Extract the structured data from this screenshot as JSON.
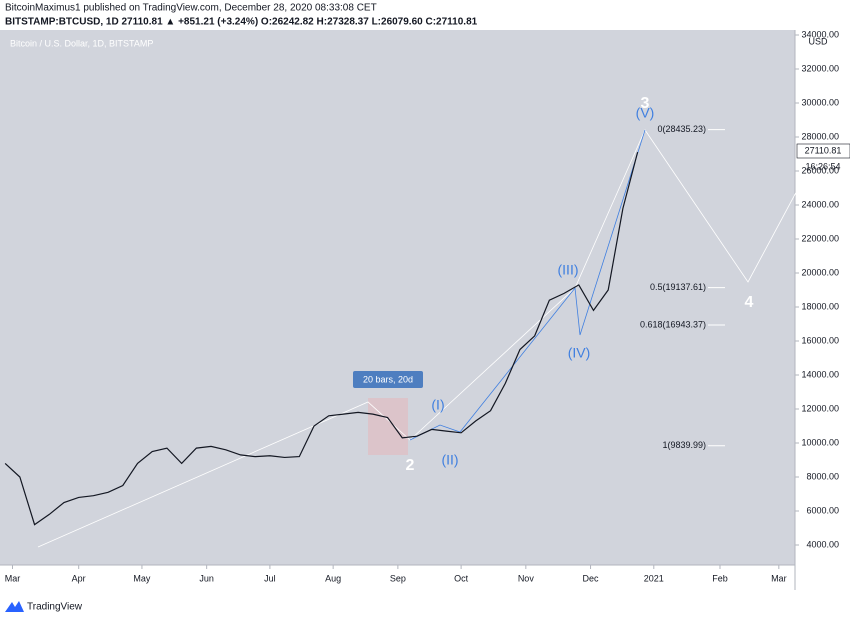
{
  "chart_data": {
    "type": "line",
    "header": "BitcoinMaximus1 published on TradingView.com, December 28, 2020 08:33:08 CET",
    "symbol_line": "BITSTAMP:BTCUSD, 1D  27110.81  ▲ +851.21 (+3.24%)  O:26242.82  H:27328.37  L:26079.60  C:27110.81",
    "title": "Bitcoin / U.S. Dollar, 1D, BITSTAMP",
    "axis_unit": "USD",
    "last_price": "27110.81",
    "countdown": "16:26:54",
    "range_box": "20 bars, 20d",
    "waves": [
      "3",
      "(V)",
      "(III)",
      "(IV)",
      "(I)",
      "(II)",
      "2",
      "4"
    ],
    "fib_levels": [
      {
        "value": 28435.23,
        "label": "0(28435.23)"
      },
      {
        "value": 19137.61,
        "label": "0.5(19137.61)"
      },
      {
        "value": 16943.37,
        "label": "0.618(16943.37)"
      },
      {
        "value": 9839.99,
        "label": "1(9839.99)"
      }
    ],
    "footer": "TradingView",
    "series": [
      {
        "name": "BTCUSD",
        "color": "#131722",
        "values": [
          8800,
          8000,
          5200,
          5800,
          6500,
          6800,
          6900,
          7100,
          7500,
          8800,
          9500,
          9700,
          8800,
          9700,
          9800,
          9600,
          9300,
          9200,
          9250,
          9150,
          9200,
          11000,
          11600,
          11700,
          11800,
          11700,
          11500,
          10300,
          10400,
          10800,
          10700,
          10600,
          11300,
          11900,
          13500,
          15500,
          16300,
          18400,
          18800,
          19300,
          17800,
          19000,
          23800,
          27110
        ]
      }
    ],
    "xlim": [
      -0.35,
      53.7
    ],
    "xticks": [
      {
        "value": 0.5,
        "label": "Mar"
      },
      {
        "value": 5,
        "label": "Apr"
      },
      {
        "value": 9.3,
        "label": "May"
      },
      {
        "value": 13.7,
        "label": "Jun"
      },
      {
        "value": 18,
        "label": "Jul"
      },
      {
        "value": 22.3,
        "label": "Aug"
      },
      {
        "value": 26.7,
        "label": "Sep"
      },
      {
        "value": 31,
        "label": "Oct"
      },
      {
        "value": 35.4,
        "label": "Nov"
      },
      {
        "value": 39.8,
        "label": "Dec"
      },
      {
        "value": 44.1,
        "label": "2021"
      },
      {
        "value": 48.6,
        "label": "Feb"
      },
      {
        "value": 52.6,
        "label": "Mar"
      }
    ],
    "ylim": [
      2824,
      34294
    ],
    "yticks": [
      {
        "value": 4000,
        "label": "4000.00"
      },
      {
        "value": 6000,
        "label": "6000.00"
      },
      {
        "value": 8000,
        "label": "8000.00"
      },
      {
        "value": 10000,
        "label": "10000.00"
      },
      {
        "value": 12000,
        "label": "12000.00"
      },
      {
        "value": 14000,
        "label": "14000.00"
      },
      {
        "value": 16000,
        "label": "16000.00"
      },
      {
        "value": 18000,
        "label": "18000.00"
      },
      {
        "value": 20000,
        "label": "20000.00"
      },
      {
        "value": 22000,
        "label": "22000.00"
      },
      {
        "value": 24000,
        "label": "24000.00"
      },
      {
        "value": 26000,
        "label": "26000.00"
      },
      {
        "value": 28000,
        "label": "28000.00"
      },
      {
        "value": 30000,
        "label": "30000.00"
      },
      {
        "value": 32000,
        "label": "32000.00"
      },
      {
        "value": 34000,
        "label": "34000.00"
      }
    ]
  }
}
